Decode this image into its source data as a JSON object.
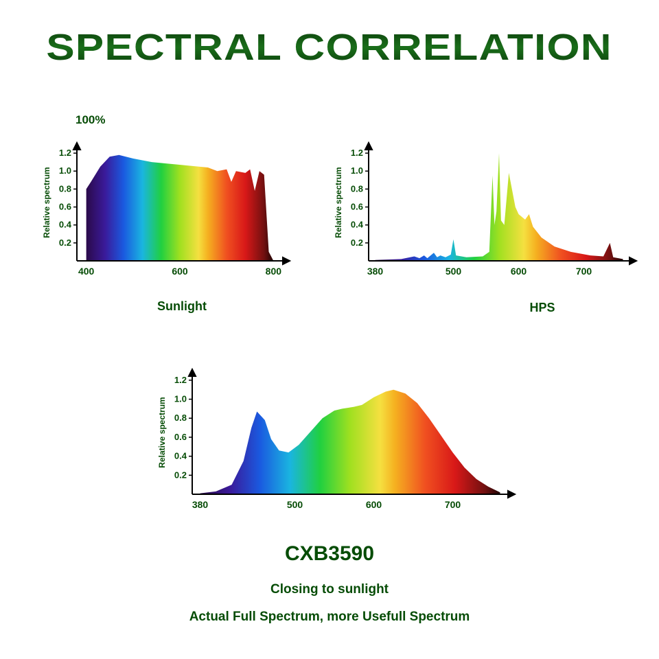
{
  "title": "SPECTRAL CORRELATION",
  "text_color": "#064c06",
  "percent_label": "100%",
  "y_axis_label": "Relative spectrum",
  "y_ticks": [
    "0.2",
    "0.4",
    "0.6",
    "0.8",
    "1.0",
    "1.2"
  ],
  "axis_color": "#000000",
  "tick_font_size": 13,
  "axis_label_font_size": 12,
  "gradient_stops": [
    {
      "o": "0%",
      "c": "#2b0a4a"
    },
    {
      "o": "10%",
      "c": "#3a1a9a"
    },
    {
      "o": "20%",
      "c": "#1a5ae0"
    },
    {
      "o": "30%",
      "c": "#1ab5e0"
    },
    {
      "o": "40%",
      "c": "#20d040"
    },
    {
      "o": "50%",
      "c": "#a0e020"
    },
    {
      "o": "60%",
      "c": "#f5e040"
    },
    {
      "o": "65%",
      "c": "#f5b020"
    },
    {
      "o": "75%",
      "c": "#f05020"
    },
    {
      "o": "85%",
      "c": "#d81818"
    },
    {
      "o": "95%",
      "c": "#701010"
    },
    {
      "o": "100%",
      "c": "#200505"
    }
  ],
  "charts": {
    "sunlight": {
      "label": "Sunlight",
      "x_ticks": [
        "400",
        "600",
        "800"
      ],
      "xlim": [
        380,
        820
      ],
      "ylim": [
        0,
        1.3
      ],
      "data": [
        [
          400,
          0.8
        ],
        [
          410,
          0.88
        ],
        [
          430,
          1.05
        ],
        [
          450,
          1.16
        ],
        [
          470,
          1.18
        ],
        [
          500,
          1.14
        ],
        [
          540,
          1.1
        ],
        [
          580,
          1.08
        ],
        [
          620,
          1.06
        ],
        [
          660,
          1.04
        ],
        [
          680,
          1.0
        ],
        [
          700,
          1.02
        ],
        [
          710,
          0.88
        ],
        [
          720,
          1.0
        ],
        [
          740,
          0.98
        ],
        [
          750,
          1.02
        ],
        [
          760,
          0.78
        ],
        [
          770,
          1.0
        ],
        [
          780,
          0.96
        ],
        [
          790,
          0.1
        ],
        [
          800,
          0.0
        ]
      ]
    },
    "hps": {
      "label": "HPS",
      "x_ticks": [
        "380",
        "500",
        "600",
        "700"
      ],
      "xlim": [
        370,
        770
      ],
      "ylim": [
        0,
        1.3
      ],
      "data": [
        [
          380,
          0.01
        ],
        [
          420,
          0.02
        ],
        [
          440,
          0.05
        ],
        [
          448,
          0.03
        ],
        [
          455,
          0.06
        ],
        [
          460,
          0.03
        ],
        [
          470,
          0.09
        ],
        [
          475,
          0.04
        ],
        [
          480,
          0.06
        ],
        [
          488,
          0.04
        ],
        [
          496,
          0.07
        ],
        [
          500,
          0.24
        ],
        [
          504,
          0.06
        ],
        [
          520,
          0.04
        ],
        [
          545,
          0.05
        ],
        [
          555,
          0.1
        ],
        [
          560,
          0.95
        ],
        [
          563,
          0.4
        ],
        [
          566,
          0.55
        ],
        [
          570,
          1.2
        ],
        [
          573,
          0.45
        ],
        [
          578,
          0.4
        ],
        [
          585,
          0.98
        ],
        [
          595,
          0.6
        ],
        [
          600,
          0.52
        ],
        [
          610,
          0.46
        ],
        [
          616,
          0.52
        ],
        [
          622,
          0.38
        ],
        [
          635,
          0.26
        ],
        [
          655,
          0.16
        ],
        [
          680,
          0.1
        ],
        [
          710,
          0.06
        ],
        [
          730,
          0.05
        ],
        [
          740,
          0.2
        ],
        [
          745,
          0.04
        ],
        [
          760,
          0.02
        ]
      ]
    },
    "cxb": {
      "label": "CXB3590",
      "x_ticks": [
        "380",
        "500",
        "600",
        "700"
      ],
      "xlim": [
        370,
        770
      ],
      "ylim": [
        0,
        1.3
      ],
      "data": [
        [
          380,
          0.01
        ],
        [
          400,
          0.03
        ],
        [
          420,
          0.1
        ],
        [
          435,
          0.35
        ],
        [
          445,
          0.7
        ],
        [
          452,
          0.87
        ],
        [
          462,
          0.78
        ],
        [
          470,
          0.58
        ],
        [
          480,
          0.46
        ],
        [
          492,
          0.44
        ],
        [
          505,
          0.52
        ],
        [
          520,
          0.66
        ],
        [
          535,
          0.8
        ],
        [
          550,
          0.88
        ],
        [
          560,
          0.9
        ],
        [
          575,
          0.92
        ],
        [
          585,
          0.94
        ],
        [
          600,
          1.02
        ],
        [
          615,
          1.08
        ],
        [
          625,
          1.1
        ],
        [
          640,
          1.06
        ],
        [
          655,
          0.96
        ],
        [
          670,
          0.8
        ],
        [
          685,
          0.62
        ],
        [
          700,
          0.44
        ],
        [
          715,
          0.28
        ],
        [
          730,
          0.16
        ],
        [
          745,
          0.08
        ],
        [
          760,
          0.02
        ]
      ]
    }
  },
  "caption1": "Closing to sunlight",
  "caption2": "Actual Full Spectrum, more Usefull Spectrum"
}
